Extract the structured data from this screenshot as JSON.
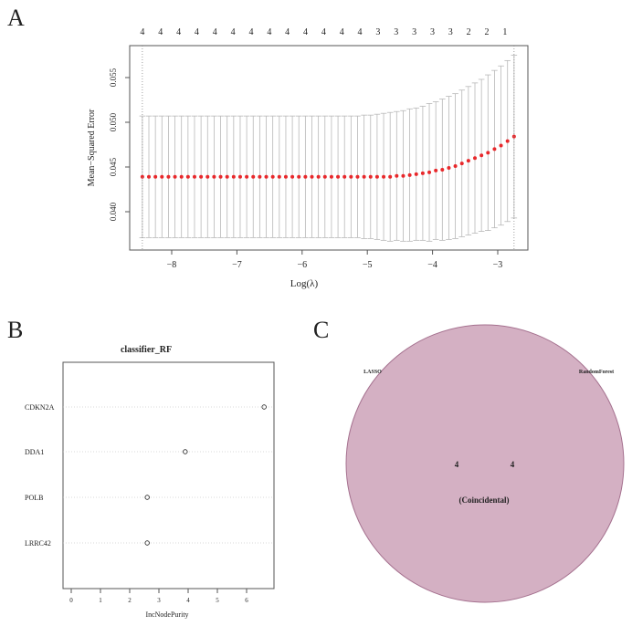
{
  "panel_labels": {
    "a": "A",
    "b": "B",
    "c": "C"
  },
  "chart_data": [
    {
      "type": "scatter",
      "panel": "A",
      "title": "",
      "xlabel": "Log(λ)",
      "ylabel": "Mean−Squared Error",
      "xlim": [
        -8.45,
        -2.72
      ],
      "ylim": [
        0.0362,
        0.0585
      ],
      "xticks": [
        -8,
        -7,
        -6,
        -5,
        -4,
        -3
      ],
      "xtick_labels": [
        "−8",
        "−7",
        "−6",
        "−5",
        "−4",
        "−3"
      ],
      "yticks": [
        0.04,
        0.045,
        0.05,
        0.055
      ],
      "ytick_labels": [
        "0.040",
        "0.045",
        "0.050",
        "0.055"
      ],
      "top_labels": [
        "4",
        "4",
        "4",
        "4",
        "4",
        "4",
        "4",
        "4",
        "4",
        "4",
        "4",
        "4",
        "4",
        "3",
        "3",
        "3",
        "3",
        "3",
        "2",
        "2",
        "1"
      ],
      "vlines": [
        -8.45,
        -2.75
      ],
      "point_color": "#e8282b",
      "errorbar_color": "#b8b8b8",
      "x": [
        -8.45,
        -8.35,
        -8.25,
        -8.15,
        -8.05,
        -7.95,
        -7.85,
        -7.75,
        -7.65,
        -7.55,
        -7.45,
        -7.35,
        -7.25,
        -7.15,
        -7.05,
        -6.95,
        -6.85,
        -6.75,
        -6.65,
        -6.55,
        -6.45,
        -6.35,
        -6.25,
        -6.15,
        -6.05,
        -5.95,
        -5.85,
        -5.75,
        -5.65,
        -5.55,
        -5.45,
        -5.35,
        -5.25,
        -5.15,
        -5.05,
        -4.95,
        -4.85,
        -4.75,
        -4.65,
        -4.55,
        -4.45,
        -4.35,
        -4.25,
        -4.15,
        -4.05,
        -3.95,
        -3.85,
        -3.75,
        -3.65,
        -3.55,
        -3.45,
        -3.35,
        -3.25,
        -3.15,
        -3.05,
        -2.95,
        -2.85,
        -2.75
      ],
      "mse": [
        0.0439,
        0.0439,
        0.0439,
        0.0439,
        0.0439,
        0.0439,
        0.0439,
        0.0439,
        0.0439,
        0.0439,
        0.0439,
        0.0439,
        0.0439,
        0.0439,
        0.0439,
        0.0439,
        0.0439,
        0.0439,
        0.0439,
        0.0439,
        0.0439,
        0.0439,
        0.0439,
        0.0439,
        0.0439,
        0.0439,
        0.0439,
        0.0439,
        0.0439,
        0.0439,
        0.0439,
        0.0439,
        0.0439,
        0.0439,
        0.0439,
        0.0439,
        0.0439,
        0.0439,
        0.0439,
        0.044,
        0.044,
        0.0441,
        0.0442,
        0.0443,
        0.0444,
        0.0446,
        0.0447,
        0.0449,
        0.0451,
        0.0454,
        0.0457,
        0.046,
        0.0463,
        0.0466,
        0.047,
        0.0474,
        0.0479,
        0.0484
      ],
      "upper": [
        0.0507,
        0.0507,
        0.0507,
        0.0507,
        0.0507,
        0.0507,
        0.0507,
        0.0507,
        0.0507,
        0.0507,
        0.0507,
        0.0507,
        0.0507,
        0.0507,
        0.0507,
        0.0507,
        0.0507,
        0.0507,
        0.0507,
        0.0507,
        0.0507,
        0.0507,
        0.0507,
        0.0507,
        0.0507,
        0.0507,
        0.0507,
        0.0507,
        0.0507,
        0.0507,
        0.0507,
        0.0507,
        0.0507,
        0.0507,
        0.0508,
        0.0508,
        0.0509,
        0.051,
        0.0511,
        0.0512,
        0.0513,
        0.0515,
        0.0516,
        0.0518,
        0.0521,
        0.0523,
        0.0526,
        0.0529,
        0.0532,
        0.0536,
        0.054,
        0.0544,
        0.0548,
        0.0553,
        0.0558,
        0.0563,
        0.0569,
        0.0575
      ],
      "lower": [
        0.0371,
        0.0371,
        0.0371,
        0.0371,
        0.0371,
        0.0371,
        0.0371,
        0.0371,
        0.0371,
        0.0371,
        0.0371,
        0.0371,
        0.0371,
        0.0371,
        0.0371,
        0.0371,
        0.0371,
        0.0371,
        0.0371,
        0.0371,
        0.0371,
        0.0371,
        0.0371,
        0.0371,
        0.0371,
        0.0371,
        0.0371,
        0.0371,
        0.0371,
        0.0371,
        0.0371,
        0.0371,
        0.0371,
        0.0371,
        0.037,
        0.037,
        0.0369,
        0.0368,
        0.0367,
        0.0368,
        0.0367,
        0.0367,
        0.0368,
        0.0368,
        0.0367,
        0.0369,
        0.0368,
        0.0369,
        0.037,
        0.0372,
        0.0374,
        0.0376,
        0.0378,
        0.0379,
        0.0382,
        0.0385,
        0.0389,
        0.0393
      ]
    },
    {
      "type": "scatter",
      "panel": "B",
      "title": "classifier_RF",
      "xlabel": "IncNodePurity",
      "ylabel": "",
      "xlim": [
        -0.3,
        6.9
      ],
      "xticks": [
        0,
        1,
        2,
        3,
        4,
        5,
        6
      ],
      "xtick_labels": [
        "0",
        "1",
        "2",
        "3",
        "4",
        "5",
        "6"
      ],
      "categories": [
        "CDKN2A",
        "DDA1",
        "POLB",
        "LRRC42"
      ],
      "values": [
        6.6,
        3.9,
        2.6,
        2.6
      ]
    },
    {
      "type": "venn",
      "panel": "C",
      "sets": [
        "LASSO",
        "RandomForest"
      ],
      "counts": [
        "4",
        "4"
      ],
      "overlap_label": "(Coincidental)",
      "fill_color": "#d4b0c3",
      "stroke_color": "#a5718f"
    }
  ]
}
